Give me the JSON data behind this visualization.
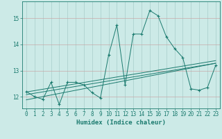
{
  "xlabel": "Humidex (Indice chaleur)",
  "x_data": [
    0,
    1,
    2,
    3,
    4,
    5,
    6,
    7,
    8,
    9,
    10,
    11,
    12,
    13,
    14,
    15,
    16,
    17,
    18,
    19,
    20,
    21,
    22,
    23
  ],
  "y_main": [
    12.2,
    12.0,
    11.9,
    12.55,
    11.7,
    12.55,
    12.55,
    12.45,
    12.15,
    11.95,
    13.6,
    14.75,
    12.45,
    14.4,
    14.4,
    15.3,
    15.1,
    14.3,
    13.85,
    13.5,
    12.3,
    12.25,
    12.35,
    13.2
  ],
  "line_color": "#1a7a6e",
  "bg_color": "#cceae7",
  "vert_grid_color": "#a8ccc9",
  "horiz_grid_color": "#c8a8a8",
  "ylim": [
    11.55,
    15.65
  ],
  "yticks": [
    12,
    13,
    14,
    15
  ],
  "xlim": [
    -0.5,
    23.5
  ],
  "regression_lines": [
    {
      "x0": 0,
      "y0": 12.08,
      "x1": 23,
      "y1": 13.28
    },
    {
      "x0": 0,
      "y0": 12.18,
      "x1": 23,
      "y1": 13.38
    },
    {
      "x0": 0,
      "y0": 11.88,
      "x1": 23,
      "y1": 13.28
    }
  ],
  "tick_fontsize": 5.5,
  "xlabel_fontsize": 6.5
}
